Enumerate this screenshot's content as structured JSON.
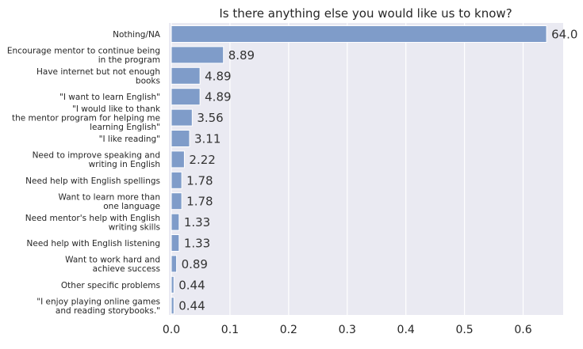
{
  "chart_data": {
    "type": "bar",
    "orientation": "horizontal",
    "title": "Is there anything else you would like us to know?",
    "xlabel": "",
    "ylabel": "",
    "xlim": [
      0,
      0.67
    ],
    "x_ticks": [
      "0.0",
      "0.1",
      "0.2",
      "0.3",
      "0.4",
      "0.5",
      "0.6"
    ],
    "grid": true,
    "background_color": "#eaeaf2",
    "bar_color": "#7f9cc9",
    "categories": [
      [
        "Nothing/NA"
      ],
      [
        "Encourage mentor to continue being",
        "in the program"
      ],
      [
        "Have internet but not enough",
        "books"
      ],
      [
        "\"I want to learn English\""
      ],
      [
        "\"I would like to thank",
        "the mentor program for helping me",
        "learning English\""
      ],
      [
        "\"I like reading\""
      ],
      [
        "Need to improve speaking and",
        "writing in English"
      ],
      [
        "Need help with English spellings"
      ],
      [
        "Want to learn more than",
        "one language"
      ],
      [
        "Need mentor's help with English",
        "writing skills"
      ],
      [
        "Need help with English listening"
      ],
      [
        "Want to work hard and",
        "achieve success"
      ],
      [
        "Other specific problems"
      ],
      [
        "\"I enjoy playing online games",
        "and reading storybooks.\""
      ]
    ],
    "values": [
      0.64,
      0.0889,
      0.0489,
      0.0489,
      0.0356,
      0.0311,
      0.0222,
      0.0178,
      0.0178,
      0.0133,
      0.0133,
      0.0089,
      0.0044,
      0.0044
    ],
    "data_labels": [
      "64.0",
      "8.89",
      "4.89",
      "4.89",
      "3.56",
      "3.11",
      "2.22",
      "1.78",
      "1.78",
      "1.33",
      "1.33",
      "0.89",
      "0.44",
      "0.44"
    ]
  }
}
